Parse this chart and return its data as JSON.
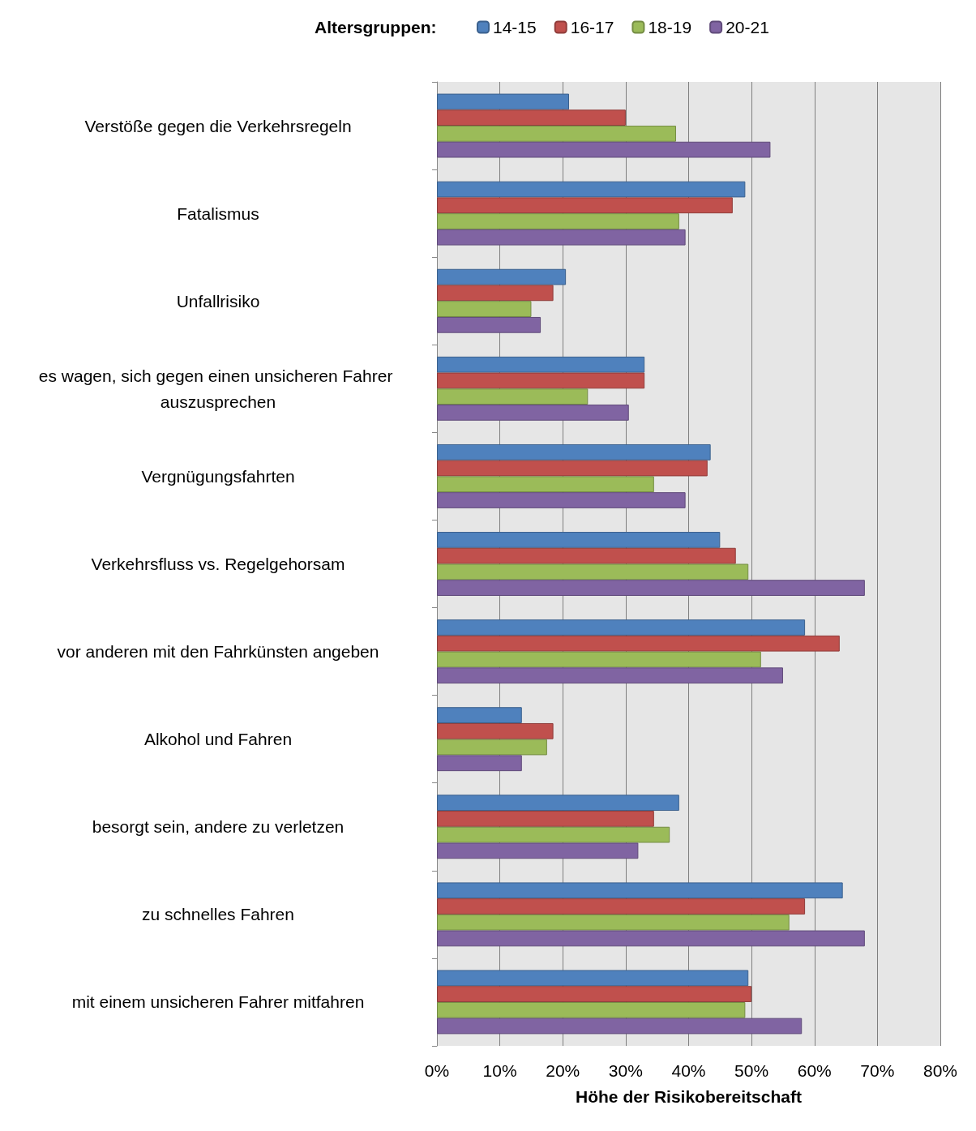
{
  "chart_data": {
    "type": "bar",
    "orientation": "horizontal",
    "xlabel": "Höhe der Risikobereitschaft",
    "legend_title": "Altersgruppen:",
    "legend": "top",
    "categories": [
      "Verstöße gegen die Verkehrsregeln",
      "Fatalismus",
      "Unfallrisiko",
      "es wagen, sich gegen einen unsicheren Fahrer auszusprechen",
      "Vergnügungsfahrten",
      "Verkehrsfluss vs. Regelgehorsam",
      "vor anderen mit den Fahrkünsten angeben",
      "Alkohol und Fahren",
      "besorgt sein, andere zu verletzen",
      "zu schnelles Fahren",
      "mit einem unsicheren Fahrer mitfahren"
    ],
    "series": [
      {
        "name": "14-15",
        "color": "#4f81bd",
        "values": [
          21,
          49,
          20.5,
          33,
          43.5,
          45,
          58.5,
          13.5,
          38.5,
          64.5,
          49.5
        ]
      },
      {
        "name": "16-17",
        "color": "#c0504d",
        "values": [
          30,
          47,
          18.5,
          33,
          43,
          47.5,
          64,
          18.5,
          34.5,
          58.5,
          50
        ]
      },
      {
        "name": "18-19",
        "color": "#9bbb59",
        "values": [
          38,
          38.5,
          15,
          24,
          34.5,
          49.5,
          51.5,
          17.5,
          37,
          56,
          49
        ]
      },
      {
        "name": "20-21",
        "color": "#8064a2",
        "values": [
          53,
          39.5,
          16.5,
          30.5,
          39.5,
          68,
          55,
          13.5,
          32,
          68,
          58
        ]
      }
    ],
    "xlim": [
      0,
      80
    ],
    "xticks": [
      {
        "value": 0,
        "label": "0%"
      },
      {
        "value": 10,
        "label": "10%"
      },
      {
        "value": 20,
        "label": "20%"
      },
      {
        "value": 30,
        "label": "30%"
      },
      {
        "value": 40,
        "label": "40%"
      },
      {
        "value": 50,
        "label": "50%"
      },
      {
        "value": 60,
        "label": "60%"
      },
      {
        "value": 70,
        "label": "70%"
      },
      {
        "value": 80,
        "label": "80%"
      }
    ],
    "grid": "x"
  }
}
